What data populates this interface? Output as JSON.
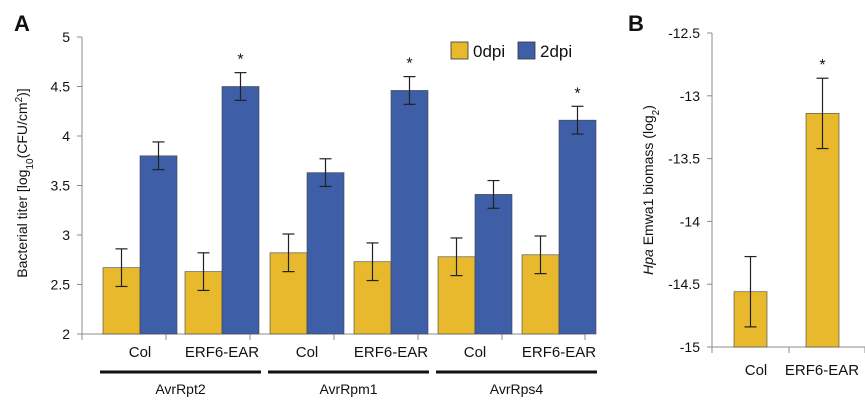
{
  "colors": {
    "d0": "#E8B92C",
    "d2": "#3E5FA8",
    "axis": "#8c8c8c",
    "err": "#222222",
    "group_line": "#111111"
  },
  "chart_data": [
    {
      "panel": "A",
      "type": "bar",
      "ylabel": "Bacterial titer  [log10(CFU/cm2)]",
      "ylabel_parts": {
        "pre": "Bacterial titer  [log",
        "sub1": "10",
        "mid": "(CFU/cm",
        "sup": "2",
        "post": ")]"
      },
      "ylim": [
        2,
        5
      ],
      "yticks": [
        "2",
        "2.5",
        "3",
        "3.5",
        "4",
        "4.5",
        "5"
      ],
      "legend_position": "top-right",
      "series": [
        {
          "name": "0dpi",
          "values": [
            2.67,
            2.63,
            2.82,
            2.73,
            2.78,
            2.8
          ],
          "errors": [
            0.19,
            0.19,
            0.19,
            0.19,
            0.19,
            0.19
          ]
        },
        {
          "name": "2dpi",
          "values": [
            3.8,
            4.5,
            3.63,
            4.46,
            3.41,
            4.16
          ],
          "errors": [
            0.14,
            0.14,
            0.14,
            0.14,
            0.14,
            0.14
          ]
        }
      ],
      "categories": [
        "Col",
        "ERF6-EAR",
        "Col",
        "ERF6-EAR",
        "Col",
        "ERF6-EAR"
      ],
      "groups": [
        "AvrRpt2",
        "AvrRpm1",
        "AvrRps4"
      ],
      "significance": [
        "",
        "*",
        "",
        "*",
        "",
        "*"
      ]
    },
    {
      "panel": "B",
      "type": "bar",
      "ylabel": "Hpa Emwa1 biomass (log2)",
      "ylabel_parts": {
        "italic": "Hpa",
        "pre": " Emwa1 biomass (log",
        "sub": "2",
        "post": ")"
      },
      "ylim": [
        -15,
        -12.5
      ],
      "yticks": [
        "-15",
        "-14.5",
        "-14",
        "-13.5",
        "-13",
        "-12.5"
      ],
      "categories": [
        "Col",
        "ERF6-EAR"
      ],
      "series": [
        {
          "values": [
            -14.56,
            -13.14
          ],
          "errors": [
            0.28,
            0.28
          ]
        }
      ],
      "significance": [
        "",
        "*"
      ]
    }
  ]
}
